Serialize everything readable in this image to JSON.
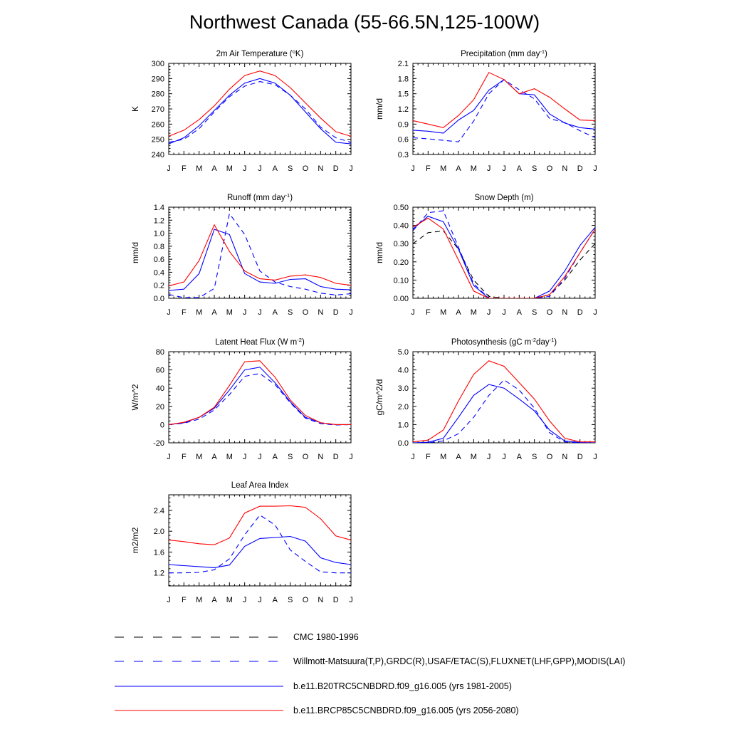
{
  "title": "Northwest Canada (55-66.5N,125-100W)",
  "months": [
    "J",
    "F",
    "M",
    "A",
    "M",
    "J",
    "J",
    "A",
    "S",
    "O",
    "N",
    "D",
    "J"
  ],
  "colors": {
    "obs": "#0000ff",
    "cmc": "#000000",
    "b20": "#0000ff",
    "rcp": "#ff0000"
  },
  "legend": [
    {
      "key": "cmc",
      "label": "CMC 1980-1996",
      "dashed": true,
      "color": "#000000"
    },
    {
      "key": "obs",
      "label": "Willmott-Matsuura(T,P),GRDC(R),USAF/ETAC(S),FLUXNET(LHF,GPP),MODIS(LAI)",
      "dashed": true,
      "color": "#0000ff"
    },
    {
      "key": "b20",
      "label": "b.e11.B20TRC5CNBDRD.f09_g16.005 (yrs 1981-2005)",
      "dashed": false,
      "color": "#0000ff"
    },
    {
      "key": "rcp",
      "label": "b.e11.BRCP85C5CNBDRD.f09_g16.005 (yrs 2056-2080)",
      "dashed": false,
      "color": "#ff0000"
    }
  ],
  "chart_data": [
    {
      "id": "temp",
      "type": "line",
      "title": "2m Air Temperature (",
      "title_sup": "o",
      "title_end": "K)",
      "ylabel": "K",
      "ylim": [
        240,
        300
      ],
      "yticks": [
        240,
        250,
        260,
        270,
        280,
        290,
        300
      ],
      "ytick_labels": [
        "240",
        "250",
        "260",
        "270",
        "280",
        "290",
        "300"
      ],
      "series": [
        {
          "key": "obs",
          "values": [
            248,
            250,
            257,
            268,
            278,
            285,
            288,
            286,
            279,
            270,
            258,
            251,
            248
          ]
        },
        {
          "key": "b20",
          "values": [
            247,
            251,
            259,
            269,
            279,
            287,
            290,
            287,
            279,
            268,
            257,
            248,
            247
          ]
        },
        {
          "key": "rcp",
          "values": [
            252,
            256,
            263,
            272,
            283,
            292,
            295,
            292,
            284,
            274,
            264,
            255,
            252
          ]
        }
      ]
    },
    {
      "id": "precip",
      "type": "line",
      "title": "Precipitation (mm day",
      "title_sup": "-1",
      "title_end": ")",
      "ylabel": "mm/d",
      "ylim": [
        0.3,
        2.1
      ],
      "yticks": [
        0.3,
        0.6,
        0.9,
        1.2,
        1.5,
        1.8,
        2.1
      ],
      "ytick_labels": [
        "0.3",
        "0.6",
        "0.9",
        "1.2",
        "1.5",
        "1.8",
        "2.1"
      ],
      "series": [
        {
          "key": "obs",
          "values": [
            0.63,
            0.61,
            0.58,
            0.55,
            0.96,
            1.5,
            1.78,
            1.58,
            1.4,
            1.01,
            0.93,
            0.77,
            0.63
          ]
        },
        {
          "key": "b20",
          "values": [
            0.78,
            0.76,
            0.72,
            0.98,
            1.17,
            1.57,
            1.78,
            1.5,
            1.48,
            1.1,
            0.92,
            0.83,
            0.8
          ]
        },
        {
          "key": "rcp",
          "values": [
            0.97,
            0.9,
            0.83,
            1.07,
            1.38,
            1.92,
            1.78,
            1.5,
            1.6,
            1.43,
            1.2,
            0.98,
            0.97
          ]
        }
      ]
    },
    {
      "id": "runoff",
      "type": "line",
      "title": "Runoff (mm day",
      "title_sup": "-1",
      "title_end": ")",
      "ylabel": "mm/d",
      "ylim": [
        0,
        1.4
      ],
      "yticks": [
        0,
        0.2,
        0.4,
        0.6,
        0.8,
        1.0,
        1.2,
        1.4
      ],
      "ytick_labels": [
        "0.0",
        "0.2",
        "0.4",
        "0.6",
        "0.8",
        "1.0",
        "1.2",
        "1.4"
      ],
      "series": [
        {
          "key": "obs",
          "values": [
            0.06,
            0.01,
            0.01,
            0.15,
            1.3,
            0.98,
            0.42,
            0.25,
            0.18,
            0.14,
            0.08,
            0.05,
            0.07
          ]
        },
        {
          "key": "b20",
          "values": [
            0.12,
            0.14,
            0.38,
            1.06,
            0.98,
            0.38,
            0.25,
            0.23,
            0.29,
            0.3,
            0.18,
            0.14,
            0.13
          ]
        },
        {
          "key": "rcp",
          "values": [
            0.19,
            0.25,
            0.58,
            1.13,
            0.72,
            0.42,
            0.3,
            0.28,
            0.34,
            0.36,
            0.32,
            0.23,
            0.2
          ]
        }
      ]
    },
    {
      "id": "snow",
      "type": "line",
      "title": "Snow Depth (m)",
      "title_sup": "",
      "title_end": "",
      "ylabel": "mm/d",
      "ylim": [
        0,
        0.5
      ],
      "yticks": [
        0,
        0.1,
        0.2,
        0.3,
        0.4,
        0.5
      ],
      "ytick_labels": [
        "0.00",
        "0.10",
        "0.20",
        "0.30",
        "0.40",
        "0.50"
      ],
      "series": [
        {
          "key": "cmc",
          "values": [
            0.3,
            0.36,
            0.37,
            0.27,
            0.1,
            0.01,
            0.0,
            0.0,
            0.0,
            0.02,
            0.1,
            0.21,
            0.3
          ]
        },
        {
          "key": "obs",
          "values": [
            0.37,
            0.47,
            0.48,
            0.28,
            0.08,
            0.0,
            0.0,
            0.0,
            0.0,
            0.01,
            0.11,
            0.25,
            0.38
          ]
        },
        {
          "key": "b20",
          "values": [
            0.38,
            0.45,
            0.42,
            0.27,
            0.07,
            0.0,
            0.0,
            0.0,
            0.0,
            0.04,
            0.15,
            0.29,
            0.39
          ]
        },
        {
          "key": "rcp",
          "values": [
            0.39,
            0.44,
            0.38,
            0.21,
            0.04,
            0.0,
            0.0,
            0.0,
            0.0,
            0.02,
            0.12,
            0.25,
            0.38
          ]
        }
      ]
    },
    {
      "id": "lhf",
      "type": "line",
      "title": "Latent Heat Flux (W m",
      "title_sup": "-2",
      "title_end": ")",
      "ylabel": "W/m^2",
      "ylim": [
        -20,
        80
      ],
      "yticks": [
        -20,
        0,
        20,
        40,
        60,
        80
      ],
      "ytick_labels": [
        "-20",
        "0",
        "20",
        "40",
        "60",
        "80"
      ],
      "series": [
        {
          "key": "obs",
          "values": [
            0,
            1.5,
            6,
            16,
            33,
            53,
            56,
            44,
            24,
            7,
            1,
            -0.5,
            0
          ]
        },
        {
          "key": "b20",
          "values": [
            0,
            2,
            8,
            18,
            38,
            60,
            63,
            46,
            25,
            8,
            2,
            0,
            0
          ]
        },
        {
          "key": "rcp",
          "values": [
            0,
            2.5,
            8,
            19,
            43,
            69,
            70,
            52,
            27,
            10,
            2,
            0,
            0
          ]
        }
      ]
    },
    {
      "id": "gpp",
      "type": "line",
      "title": "Photosynthesis (gC m",
      "title_sup": "-2",
      "title_end": "day",
      "title_sup2": "-1",
      "title_end2": ")",
      "ylabel": "gC/m^2/d",
      "ylim": [
        0,
        5
      ],
      "yticks": [
        0,
        1,
        2,
        3,
        4,
        5
      ],
      "ytick_labels": [
        "0.0",
        "1.0",
        "2.0",
        "3.0",
        "4.0",
        "5.0"
      ],
      "series": [
        {
          "key": "obs",
          "values": [
            0,
            0,
            0.1,
            0.5,
            1.4,
            2.6,
            3.45,
            2.9,
            1.9,
            0.55,
            0.05,
            0,
            0
          ]
        },
        {
          "key": "b20",
          "values": [
            0,
            0.03,
            0.25,
            1.4,
            2.6,
            3.2,
            3.0,
            2.4,
            1.75,
            0.7,
            0.1,
            0.02,
            0
          ]
        },
        {
          "key": "rcp",
          "values": [
            0.05,
            0.15,
            0.7,
            2.3,
            3.75,
            4.5,
            4.2,
            3.3,
            2.4,
            1.2,
            0.25,
            0.05,
            0.05
          ]
        }
      ]
    },
    {
      "id": "lai",
      "type": "line",
      "title": "Leaf Area Index",
      "title_sup": "",
      "title_end": "",
      "ylabel": "m2/m2",
      "ylim": [
        0.95,
        2.7
      ],
      "yticks": [
        1.2,
        1.6,
        2.0,
        2.4
      ],
      "ytick_labels": [
        "1.2",
        "1.6",
        "2.0",
        "2.4"
      ],
      "series": [
        {
          "key": "obs",
          "values": [
            1.2,
            1.2,
            1.21,
            1.26,
            1.47,
            1.93,
            2.31,
            2.12,
            1.64,
            1.42,
            1.22,
            1.2,
            1.2
          ]
        },
        {
          "key": "b20",
          "values": [
            1.36,
            1.34,
            1.32,
            1.3,
            1.35,
            1.71,
            1.86,
            1.88,
            1.9,
            1.81,
            1.49,
            1.4,
            1.36
          ]
        },
        {
          "key": "rcp",
          "values": [
            1.83,
            1.8,
            1.76,
            1.74,
            1.87,
            2.35,
            2.48,
            2.48,
            2.49,
            2.46,
            2.24,
            1.91,
            1.83
          ]
        }
      ]
    }
  ]
}
